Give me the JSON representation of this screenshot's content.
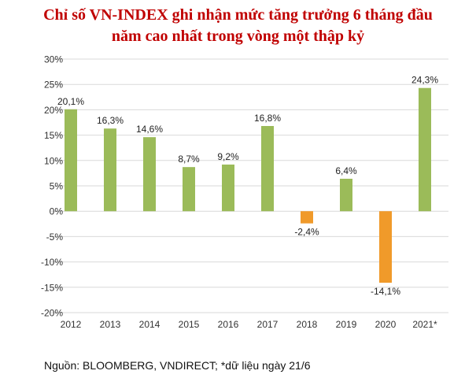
{
  "chart_data": {
    "type": "bar",
    "title": "Chỉ số VN-INDEX ghi nhận mức tăng trưởng 6 tháng đầu năm cao nhất trong vòng một thập kỷ",
    "title_lines": [
      "Chỉ số VN-INDEX ghi nhận mức tăng trưởng 6 tháng đầu",
      "năm cao nhất trong vòng một thập kỷ"
    ],
    "categories": [
      "2012",
      "2013",
      "2014",
      "2015",
      "2016",
      "2017",
      "2018",
      "2019",
      "2020",
      "2021*"
    ],
    "values": [
      20.1,
      16.3,
      14.6,
      8.7,
      9.2,
      16.8,
      -2.4,
      6.4,
      -14.1,
      24.3
    ],
    "data_labels": [
      "20,1%",
      "16,3%",
      "14,6%",
      "8,7%",
      "9,2%",
      "16,8%",
      "-2,4%",
      "6,4%",
      "-14,1%",
      "24,3%"
    ],
    "ylim": [
      -20,
      30
    ],
    "yticks": [
      30,
      25,
      20,
      15,
      10,
      5,
      0,
      -5,
      -10,
      -15,
      -20
    ],
    "ytick_labels": [
      "30%",
      "25%",
      "20%",
      "15%",
      "10%",
      "5%",
      "0%",
      "-5%",
      "-10%",
      "-15%",
      "-20%"
    ],
    "xlabel": "",
    "ylabel": "",
    "grid": true,
    "legend": "none",
    "colors": {
      "positive": "#9bbb59",
      "negative": "#f09a2a",
      "title": "#c00000",
      "grid": "#d9d9d9"
    }
  },
  "source": "Nguồn: BLOOMBERG, VNDIRECT; *dữ liệu ngày 21/6"
}
